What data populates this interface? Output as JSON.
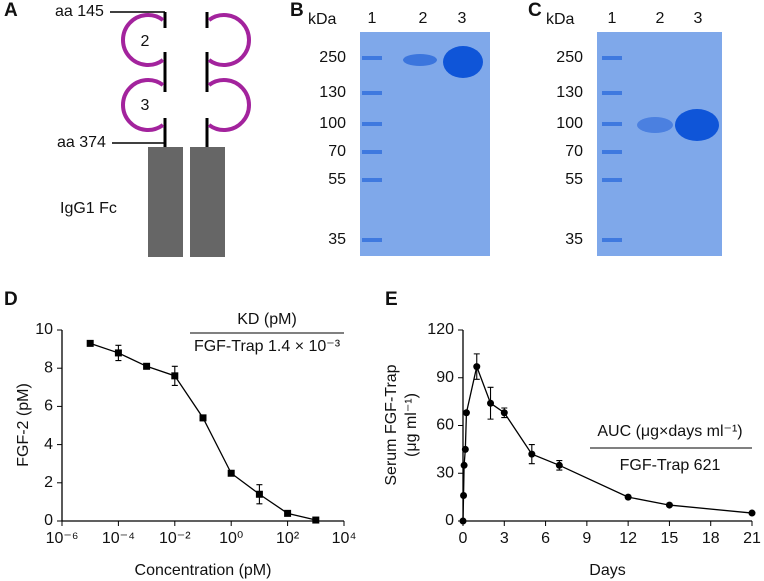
{
  "panels": {
    "A": {
      "letter": "A",
      "top_label": "aa 145",
      "bottom_label": "aa 374",
      "domain_2": "2",
      "domain_3": "3",
      "fc_label": "IgG1 Fc"
    },
    "B": {
      "letter": "B",
      "unit": "kDa",
      "lanes": [
        "1",
        "2",
        "3"
      ],
      "markers": [
        "250",
        "130",
        "100",
        "70",
        "55",
        "35"
      ]
    },
    "C": {
      "letter": "C",
      "unit": "kDa",
      "lanes": [
        "1",
        "2",
        "3"
      ],
      "markers": [
        "250",
        "130",
        "100",
        "70",
        "55",
        "35"
      ]
    }
  },
  "chart_data": [
    {
      "type": "line",
      "letter": "D",
      "x_label": "Concentration (pM)",
      "y_label": "FGF-2 (pM)",
      "log_x": true,
      "xlim": [
        1e-06,
        10000
      ],
      "xticks": [
        {
          "value": 1e-06,
          "label": "10⁻⁶"
        },
        {
          "value": 0.0001,
          "label": "10⁻⁴"
        },
        {
          "value": 0.01,
          "label": "10⁻²"
        },
        {
          "value": 1,
          "label": "10⁰"
        },
        {
          "value": 100,
          "label": "10²"
        },
        {
          "value": 10000,
          "label": "10⁴"
        }
      ],
      "ylim": [
        0,
        10
      ],
      "yticks": [
        0,
        2,
        4,
        6,
        8,
        10
      ],
      "x": [
        1e-05,
        0.0001,
        0.001,
        0.01,
        0.1,
        1,
        10,
        100,
        1000
      ],
      "series": [
        {
          "marker": "square",
          "color": "#000000",
          "values": [
            9.3,
            8.8,
            8.1,
            7.6,
            5.4,
            2.5,
            1.4,
            0.4,
            0.05
          ],
          "errors": [
            null,
            0.4,
            null,
            0.5,
            0.15,
            null,
            0.5,
            null,
            null
          ]
        }
      ],
      "annotation": {
        "header": "KD (pM)",
        "row": "FGF-Trap 1.4 × 10⁻³"
      }
    },
    {
      "type": "line",
      "letter": "E",
      "x_label": "Days",
      "y_label": "Serum FGF-Trap",
      "y_label_line2": "(μg ml⁻¹)",
      "log_x": false,
      "xlim": [
        0,
        21
      ],
      "xticks": [
        0,
        3,
        6,
        9,
        12,
        15,
        18,
        21
      ],
      "ylim": [
        0,
        120
      ],
      "yticks": [
        0,
        30,
        60,
        90,
        120
      ],
      "x": [
        0,
        0.04,
        0.08,
        0.17,
        0.25,
        1,
        2,
        3,
        5,
        7,
        12,
        15,
        21
      ],
      "series": [
        {
          "marker": "circle",
          "color": "#000000",
          "values": [
            0,
            16,
            35,
            45,
            68,
            97,
            74,
            68,
            42,
            35,
            15,
            10,
            5
          ],
          "errors": [
            null,
            null,
            null,
            null,
            null,
            8,
            10,
            3,
            6,
            3,
            null,
            null,
            null
          ]
        }
      ],
      "annotation": {
        "header": "AUC (μg×days ml⁻¹)",
        "row": "FGF-Trap 621"
      }
    }
  ]
}
